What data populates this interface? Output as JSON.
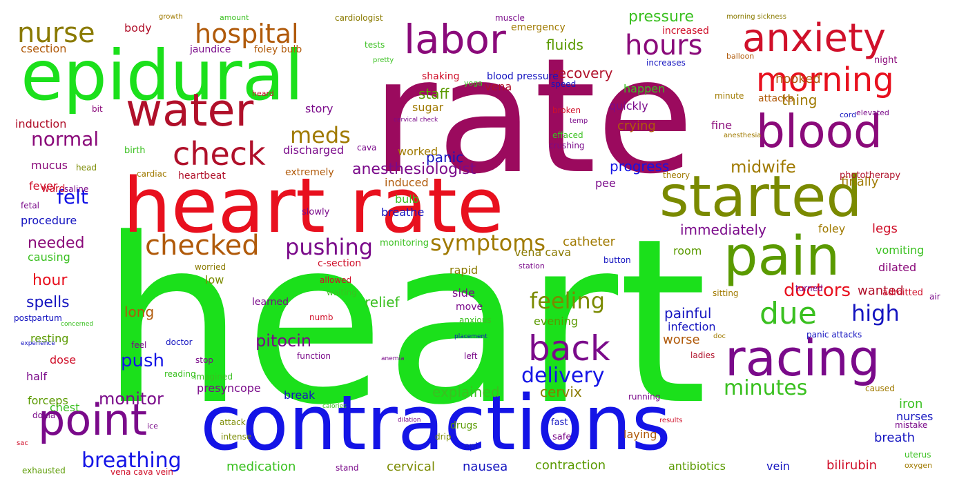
{
  "words": [
    {
      "text": "heart",
      "color": "#1be01b",
      "vertical": false
    },
    {
      "text": "rate",
      "color": "#9b0a5e",
      "vertical": false
    },
    {
      "text": "contractions",
      "color": "#1414e6",
      "vertical": false
    },
    {
      "text": "heart rate",
      "color": "#e8101e",
      "vertical": false
    },
    {
      "text": "epidural",
      "color": "#1be01b",
      "vertical": false
    },
    {
      "text": "started",
      "color": "#7a8a00",
      "vertical": false
    },
    {
      "text": "pain",
      "color": "#5a9a00",
      "vertical": false
    },
    {
      "text": "racing",
      "color": "#7a0a8a",
      "vertical": false
    },
    {
      "text": "blood",
      "color": "#8a0a7a",
      "vertical": false
    },
    {
      "text": "anxiety",
      "color": "#d0102a",
      "vertical": false
    },
    {
      "text": "water",
      "color": "#b0102a",
      "vertical": false
    },
    {
      "text": "labor",
      "color": "#8a0a7a",
      "vertical": false
    },
    {
      "text": "point",
      "color": "#7a0a8a",
      "vertical": false
    },
    {
      "text": "back",
      "color": "#7a0a8a",
      "vertical": false
    },
    {
      "text": "morning",
      "color": "#e8101e",
      "vertical": false
    },
    {
      "text": "hospital",
      "color": "#b05a0a",
      "vertical": false
    },
    {
      "text": "nurse",
      "color": "#8a7a00",
      "vertical": false
    },
    {
      "text": "check",
      "color": "#b0102a",
      "vertical": false
    },
    {
      "text": "checked",
      "color": "#b05a0a",
      "vertical": false
    },
    {
      "text": "due",
      "color": "#3ac020",
      "vertical": false
    },
    {
      "text": "hours",
      "color": "#8a0a7a",
      "vertical": false
    },
    {
      "text": "pushing",
      "color": "#7a0a8a",
      "vertical": false
    },
    {
      "text": "symptoms",
      "color": "#a07a00",
      "vertical": false
    },
    {
      "text": "feeling",
      "color": "#7a8a00",
      "vertical": false
    },
    {
      "text": "delivery",
      "color": "#1414e6",
      "vertical": false
    },
    {
      "text": "minutes",
      "color": "#3ac020",
      "vertical": false
    },
    {
      "text": "high",
      "color": "#1414c0",
      "vertical": false
    },
    {
      "text": "breathing",
      "color": "#1414e6",
      "vertical": false
    },
    {
      "text": "doctors",
      "color": "#e8101e",
      "vertical": false
    },
    {
      "text": "meds",
      "color": "#a07a00",
      "vertical": false
    },
    {
      "text": "midwife",
      "color": "#a07a00",
      "vertical": false
    },
    {
      "text": "monitor",
      "color": "#7a0a8a",
      "vertical": false
    },
    {
      "text": "push",
      "color": "#1414e6",
      "vertical": false
    },
    {
      "text": "felt",
      "color": "#1414e6",
      "vertical": false
    },
    {
      "text": "normal",
      "color": "#8a0a7a",
      "vertical": false
    },
    {
      "text": "anesthesiologist",
      "color": "#7a0a8a",
      "vertical": false
    },
    {
      "text": "pitocin",
      "color": "#7a0a8a",
      "vertical": false
    },
    {
      "text": "recovery",
      "color": "#b0102a",
      "vertical": false
    },
    {
      "text": "pressure",
      "color": "#3ac020",
      "vertical": false
    },
    {
      "text": "fluids",
      "color": "#5a9a00",
      "vertical": false
    },
    {
      "text": "panic",
      "color": "#1414c0",
      "vertical": false
    },
    {
      "text": "staff",
      "color": "#5a9a00",
      "vertical": false
    },
    {
      "text": "progress",
      "color": "#1414e6",
      "vertical": false
    },
    {
      "text": "immediately",
      "color": "#7a0a8a",
      "vertical": false
    },
    {
      "text": "catheter",
      "color": "#a07a00",
      "vertical": false
    },
    {
      "text": "needed",
      "color": "#8a0a7a",
      "vertical": false
    },
    {
      "text": "hour",
      "color": "#e8101e",
      "vertical": false
    },
    {
      "text": "spells",
      "color": "#1414c0",
      "vertical": false
    },
    {
      "text": "long",
      "color": "#b05a0a",
      "vertical": false
    },
    {
      "text": "relief",
      "color": "#3ac020",
      "vertical": false
    },
    {
      "text": "explained",
      "color": "#3ac020",
      "vertical": false
    },
    {
      "text": "cervix",
      "color": "#8a7a00",
      "vertical": false
    },
    {
      "text": "painful",
      "color": "#1414c0",
      "vertical": false
    },
    {
      "text": "infection",
      "color": "#1414c0",
      "vertical": false
    },
    {
      "text": "worse",
      "color": "#b05a0a",
      "vertical": false
    },
    {
      "text": "wanted",
      "color": "#b0102a",
      "vertical": false
    },
    {
      "text": "legs",
      "color": "#d0102a",
      "vertical": false
    },
    {
      "text": "finally",
      "color": "#a07a00",
      "vertical": false
    },
    {
      "text": "crying",
      "color": "#b05a0a",
      "vertical": false
    },
    {
      "text": "thing",
      "color": "#a07a00",
      "vertical": false
    },
    {
      "text": "hooked",
      "color": "#b05a0a",
      "vertical": false
    },
    {
      "text": "csection",
      "color": "#b05a0a",
      "vertical": false
    },
    {
      "text": "body",
      "color": "#b0102a",
      "vertical": false
    },
    {
      "text": "induction",
      "color": "#b0102a",
      "vertical": false
    },
    {
      "text": "mucus",
      "color": "#8a0a7a",
      "vertical": false
    },
    {
      "text": "fever",
      "color": "#d0102a",
      "vertical": false
    },
    {
      "text": "causing",
      "color": "#3ac020",
      "vertical": false
    },
    {
      "text": "procedure",
      "color": "#1414c0",
      "vertical": false
    },
    {
      "text": "dose",
      "color": "#d0102a",
      "vertical": false
    },
    {
      "text": "half",
      "color": "#7a0a8a",
      "vertical": false
    },
    {
      "text": "chest",
      "color": "#3ac020",
      "vertical": false
    },
    {
      "text": "forceps",
      "color": "#5a9a00",
      "vertical": false
    },
    {
      "text": "resting",
      "color": "#5a9a00",
      "vertical": false
    },
    {
      "text": "postpartum",
      "color": "#1414c0",
      "vertical": false
    },
    {
      "text": "medication",
      "color": "#3ac020",
      "vertical": false
    },
    {
      "text": "cervical",
      "color": "#7a8a00",
      "vertical": false
    },
    {
      "text": "nausea",
      "color": "#1414c0",
      "vertical": false
    },
    {
      "text": "contraction",
      "color": "#5a9a00",
      "vertical": false
    },
    {
      "text": "antibiotics",
      "color": "#5a9a00",
      "vertical": false
    },
    {
      "text": "vein",
      "color": "#1414c0",
      "vertical": false
    },
    {
      "text": "bilirubin",
      "color": "#d0102a",
      "vertical": false
    },
    {
      "text": "breath",
      "color": "#1414c0",
      "vertical": false
    },
    {
      "text": "iron",
      "color": "#3ac020",
      "vertical": false
    },
    {
      "text": "nurses",
      "color": "#1414c0",
      "vertical": false
    },
    {
      "text": "laying",
      "color": "#b05a0a",
      "vertical": false
    },
    {
      "text": "presyncope",
      "color": "#7a0a8a",
      "vertical": false
    },
    {
      "text": "break",
      "color": "#1414c0",
      "vertical": false
    },
    {
      "text": "vena cava",
      "color": "#8a7a00",
      "vertical": false
    },
    {
      "text": "room",
      "color": "#5a9a00",
      "vertical": false
    },
    {
      "text": "evening",
      "color": "#5a9a00",
      "vertical": false
    },
    {
      "text": "vomiting",
      "color": "#3ac020",
      "vertical": false
    },
    {
      "text": "dilated",
      "color": "#8a0a7a",
      "vertical": false
    },
    {
      "text": "foley",
      "color": "#a07a00",
      "vertical": false
    },
    {
      "text": "cava",
      "color": "#7a0a8a",
      "vertical": false
    },
    {
      "text": "vena",
      "color": "#b0102a",
      "vertical": false
    },
    {
      "text": "sugar",
      "color": "#a07a00",
      "vertical": false
    },
    {
      "text": "story",
      "color": "#7a0a8a",
      "vertical": false
    },
    {
      "text": "discharged",
      "color": "#7a0a8a",
      "vertical": false
    },
    {
      "text": "worked",
      "color": "#a07a00",
      "vertical": false
    },
    {
      "text": "induced",
      "color": "#b05a0a",
      "vertical": false
    },
    {
      "text": "bulb",
      "color": "#3ac020",
      "vertical": false
    },
    {
      "text": "breathe",
      "color": "#1414c0",
      "vertical": false
    },
    {
      "text": "pee",
      "color": "#7a0a8a",
      "vertical": false
    },
    {
      "text": "happen",
      "color": "#3ac020",
      "vertical": false
    },
    {
      "text": "quickly",
      "color": "#7a0a8a",
      "vertical": false
    },
    {
      "text": "fine",
      "color": "#8a0a7a",
      "vertical": false
    },
    {
      "text": "side",
      "color": "#7a0a8a",
      "vertical": false
    },
    {
      "text": "rapid",
      "color": "#8a7a00",
      "vertical": false
    },
    {
      "text": "low",
      "color": "#7a8a00",
      "vertical": false
    },
    {
      "text": "blood pressure",
      "color": "#1414c0",
      "vertical": false
    },
    {
      "text": "shaking",
      "color": "#d0102a",
      "vertical": false
    },
    {
      "text": "jaundice",
      "color": "#7a0a8a",
      "vertical": false
    },
    {
      "text": "foley bulb",
      "color": "#b05a0a",
      "vertical": false
    },
    {
      "text": "emergency",
      "color": "#a07a00",
      "vertical": false
    },
    {
      "text": "muscle",
      "color": "#7a0a8a",
      "vertical": false
    },
    {
      "text": "cardiologist",
      "color": "#8a7a00",
      "vertical": false
    },
    {
      "text": "tests",
      "color": "#3ac020",
      "vertical": false
    },
    {
      "text": "pretty",
      "color": "#3ac020",
      "vertical": false
    },
    {
      "text": "yoga",
      "color": "#3ac020",
      "vertical": false
    },
    {
      "text": "increased",
      "color": "#d0102a",
      "vertical": false
    },
    {
      "text": "increases",
      "color": "#1414c0",
      "vertical": false
    },
    {
      "text": "balloon",
      "color": "#b05a0a",
      "vertical": false
    },
    {
      "text": "night",
      "color": "#8a0a7a",
      "vertical": false
    },
    {
      "text": "morning sickness",
      "color": "#8a7a00",
      "vertical": false
    },
    {
      "text": "growth",
      "color": "#a07a00",
      "vertical": false
    },
    {
      "text": "amount",
      "color": "#3ac020",
      "vertical": false
    },
    {
      "text": "speed",
      "color": "#1414c0",
      "vertical": false
    },
    {
      "text": "minute",
      "color": "#a07a00",
      "vertical": false
    },
    {
      "text": "attacks",
      "color": "#b05a0a",
      "vertical": false
    },
    {
      "text": "cord",
      "color": "#1414c0",
      "vertical": false
    },
    {
      "text": "elevated",
      "color": "#7a0a8a",
      "vertical": false
    },
    {
      "text": "heard",
      "color": "#d0102a",
      "vertical": false
    },
    {
      "text": "bit",
      "color": "#8a0a7a",
      "vertical": false
    },
    {
      "text": "cervical check",
      "color": "#7a0a8a",
      "vertical": false
    },
    {
      "text": "broken",
      "color": "#d0102a",
      "vertical": false
    },
    {
      "text": "temp",
      "color": "#7a0a8a",
      "vertical": false
    },
    {
      "text": "effaced",
      "color": "#3ac020",
      "vertical": false
    },
    {
      "text": "crushing",
      "color": "#7a0a8a",
      "vertical": false
    },
    {
      "text": "anesthesia",
      "color": "#a07a00",
      "vertical": false
    },
    {
      "text": "birth",
      "color": "#3ac020",
      "vertical": false
    },
    {
      "text": "head",
      "color": "#7a8a00",
      "vertical": false
    },
    {
      "text": "cardiac",
      "color": "#a07a00",
      "vertical": false
    },
    {
      "text": "extremely",
      "color": "#b05a0a",
      "vertical": false
    },
    {
      "text": "heartbeat",
      "color": "#b0102a",
      "vertical": false
    },
    {
      "text": "ward",
      "color": "#d0102a",
      "vertical": false
    },
    {
      "text": "saline",
      "color": "#7a0a8a",
      "vertical": false
    },
    {
      "text": "fetal",
      "color": "#7a0a8a",
      "vertical": false
    },
    {
      "text": "theory",
      "color": "#a07a00",
      "vertical": false
    },
    {
      "text": "phototherapy",
      "color": "#b0102a",
      "vertical": false
    },
    {
      "text": "slowly",
      "color": "#7a0a8a",
      "vertical": false
    },
    {
      "text": "monitoring",
      "color": "#3ac020",
      "vertical": false
    },
    {
      "text": "c-section",
      "color": "#d0102a",
      "vertical": false
    },
    {
      "text": "worried",
      "color": "#8a7a00",
      "vertical": false
    },
    {
      "text": "station",
      "color": "#7a0a8a",
      "vertical": false
    },
    {
      "text": "button",
      "color": "#1414c0",
      "vertical": false
    },
    {
      "text": "allowed",
      "color": "#d0102a",
      "vertical": false
    },
    {
      "text": "waiting",
      "color": "#3ac020",
      "vertical": false
    },
    {
      "text": "learned",
      "color": "#7a0a8a",
      "vertical": false
    },
    {
      "text": "numb",
      "color": "#d0102a",
      "vertical": false
    },
    {
      "text": "move",
      "color": "#7a0a8a",
      "vertical": false
    },
    {
      "text": "anxious",
      "color": "#3ac020",
      "vertical": false
    },
    {
      "text": "sitting",
      "color": "#a07a00",
      "vertical": false
    },
    {
      "text": "turned",
      "color": "#7a0a8a",
      "vertical": false
    },
    {
      "text": "admitted",
      "color": "#d0102a",
      "vertical": false
    },
    {
      "text": "air",
      "color": "#7a0a8a",
      "vertical": false
    },
    {
      "text": "concerned",
      "color": "#3ac020",
      "vertical": false
    },
    {
      "text": "experience",
      "color": "#1414c0",
      "vertical": false
    },
    {
      "text": "doctor",
      "color": "#1414c0",
      "vertical": false
    },
    {
      "text": "feel",
      "color": "#7a0a8a",
      "vertical": false
    },
    {
      "text": "placement",
      "color": "#1414c0",
      "vertical": false
    },
    {
      "text": "doc",
      "color": "#a07a00",
      "vertical": false
    },
    {
      "text": "panic attacks",
      "color": "#1414c0",
      "vertical": false
    },
    {
      "text": "ladies",
      "color": "#b0102a",
      "vertical": false
    },
    {
      "text": "function",
      "color": "#7a0a8a",
      "vertical": false
    },
    {
      "text": "left",
      "color": "#7a0a8a",
      "vertical": false
    },
    {
      "text": "stop",
      "color": "#7a0a8a",
      "vertical": false
    },
    {
      "text": "reading",
      "color": "#3ac020",
      "vertical": false
    },
    {
      "text": "imagined",
      "color": "#3ac020",
      "vertical": false
    },
    {
      "text": "anemia",
      "color": "#7a0a8a",
      "vertical": false
    },
    {
      "text": "caused",
      "color": "#a07a00",
      "vertical": false
    },
    {
      "text": "calories",
      "color": "#3ac020",
      "vertical": false
    },
    {
      "text": "running",
      "color": "#7a0a8a",
      "vertical": false
    },
    {
      "text": "doula",
      "color": "#7a0a8a",
      "vertical": false
    },
    {
      "text": "ice",
      "color": "#7a0a8a",
      "vertical": false
    },
    {
      "text": "attack",
      "color": "#7a8a00",
      "vertical": false
    },
    {
      "text": "dilation",
      "color": "#7a0a8a",
      "vertical": false
    },
    {
      "text": "results",
      "color": "#d0102a",
      "vertical": false
    },
    {
      "text": "fast",
      "color": "#1414c0",
      "vertical": false
    },
    {
      "text": "safe",
      "color": "#7a0a8a",
      "vertical": false
    },
    {
      "text": "mistake",
      "color": "#7a0a8a",
      "vertical": false
    },
    {
      "text": "uterus",
      "color": "#3ac020",
      "vertical": false
    },
    {
      "text": "sac",
      "color": "#d0102a",
      "vertical": false
    },
    {
      "text": "intense",
      "color": "#7a8a00",
      "vertical": false
    },
    {
      "text": "drip",
      "color": "#7a8a00",
      "vertical": false
    },
    {
      "text": "epi",
      "color": "#1414c0",
      "vertical": false
    },
    {
      "text": "drugs",
      "color": "#5a9a00",
      "vertical": false
    },
    {
      "text": "exhausted",
      "color": "#5a9a00",
      "vertical": false
    },
    {
      "text": "vena cava vein",
      "color": "#d0102a",
      "vertical": false
    },
    {
      "text": "stand",
      "color": "#7a0a8a",
      "vertical": false
    },
    {
      "text": "oxygen",
      "color": "#a07a00",
      "vertical": false
    }
  ]
}
